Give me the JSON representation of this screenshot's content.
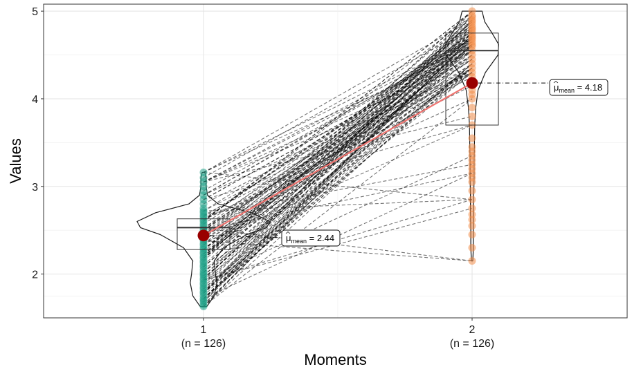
{
  "chart_data": {
    "type": "violin-box-paired-lines",
    "xlabel": "Moments",
    "ylabel": "Values",
    "ylim": [
      1.5,
      5.08
    ],
    "yticks": [
      2,
      3,
      4,
      5
    ],
    "grid": true,
    "groups": [
      {
        "x": 1,
        "tick_label": "1",
        "n_label": "(n = 126)",
        "color": "#1fa187",
        "mean": 2.44,
        "mean_label_sub": "mean",
        "mean_label_value": "= 2.44",
        "box": {
          "q1": 2.28,
          "median": 2.53,
          "q3": 2.63,
          "whisker_low": 1.63,
          "whisker_high": 3.16
        },
        "violin": [
          [
            1.63,
            0.05
          ],
          [
            1.75,
            0.16
          ],
          [
            1.9,
            0.2
          ],
          [
            2.0,
            0.18
          ],
          [
            2.15,
            0.16
          ],
          [
            2.3,
            0.3
          ],
          [
            2.45,
            0.65
          ],
          [
            2.53,
            0.95
          ],
          [
            2.6,
            1.0
          ],
          [
            2.7,
            0.72
          ],
          [
            2.8,
            0.22
          ],
          [
            2.9,
            0.06
          ],
          [
            3.0,
            0.04
          ],
          [
            3.1,
            0.04
          ],
          [
            3.16,
            0.02
          ]
        ],
        "points": [
          1.63,
          1.65,
          1.68,
          1.7,
          1.72,
          1.75,
          1.78,
          1.8,
          1.83,
          1.85,
          1.88,
          1.9,
          1.93,
          1.95,
          1.98,
          2.0,
          2.02,
          2.05,
          2.08,
          2.1,
          2.13,
          2.15,
          2.18,
          2.2,
          2.23,
          2.25,
          2.28,
          2.3,
          2.33,
          2.35,
          2.38,
          2.4,
          2.42,
          2.45,
          2.47,
          2.5,
          2.52,
          2.55,
          2.57,
          2.6,
          2.62,
          2.65,
          2.67,
          2.7,
          2.72,
          2.75,
          2.8,
          2.85,
          2.9,
          2.95,
          3.0,
          3.05,
          3.1,
          3.16
        ]
      },
      {
        "x": 2,
        "tick_label": "2",
        "n_label": "(n = 126)",
        "color": "#f28e4a",
        "mean": 4.18,
        "mean_label_sub": "mean",
        "mean_label_value": "= 4.18",
        "box": {
          "q1": 3.7,
          "median": 4.55,
          "q3": 4.75,
          "whisker_low": 2.15,
          "whisker_high": 5.0
        },
        "violin": [
          [
            2.15,
            0.02
          ],
          [
            2.3,
            0.04
          ],
          [
            2.5,
            0.04
          ],
          [
            2.7,
            0.05
          ],
          [
            2.9,
            0.05
          ],
          [
            3.1,
            0.06
          ],
          [
            3.3,
            0.06
          ],
          [
            3.5,
            0.07
          ],
          [
            3.7,
            0.08
          ],
          [
            3.9,
            0.11
          ],
          [
            4.1,
            0.18
          ],
          [
            4.3,
            0.4
          ],
          [
            4.5,
            0.78
          ],
          [
            4.62,
            0.8
          ],
          [
            4.75,
            0.6
          ],
          [
            4.88,
            0.38
          ],
          [
            5.0,
            0.3
          ]
        ],
        "points": [
          2.15,
          2.3,
          2.45,
          2.55,
          2.62,
          2.68,
          2.75,
          2.85,
          2.95,
          3.05,
          3.1,
          3.15,
          3.2,
          3.25,
          3.3,
          3.35,
          3.4,
          3.45,
          3.55,
          3.7,
          3.8,
          3.9,
          4.0,
          4.05,
          4.1,
          4.15,
          4.2,
          4.25,
          4.3,
          4.35,
          4.4,
          4.45,
          4.5,
          4.55,
          4.6,
          4.62,
          4.65,
          4.68,
          4.7,
          4.72,
          4.75,
          4.78,
          4.8,
          4.82,
          4.85,
          4.88,
          4.9,
          4.93,
          4.95,
          5.0
        ]
      }
    ],
    "mean_line_color": "#f07470",
    "mean_point_color": "#990000",
    "paired_lines": {
      "count": 126,
      "color": "#000000",
      "style": "dashed"
    }
  }
}
